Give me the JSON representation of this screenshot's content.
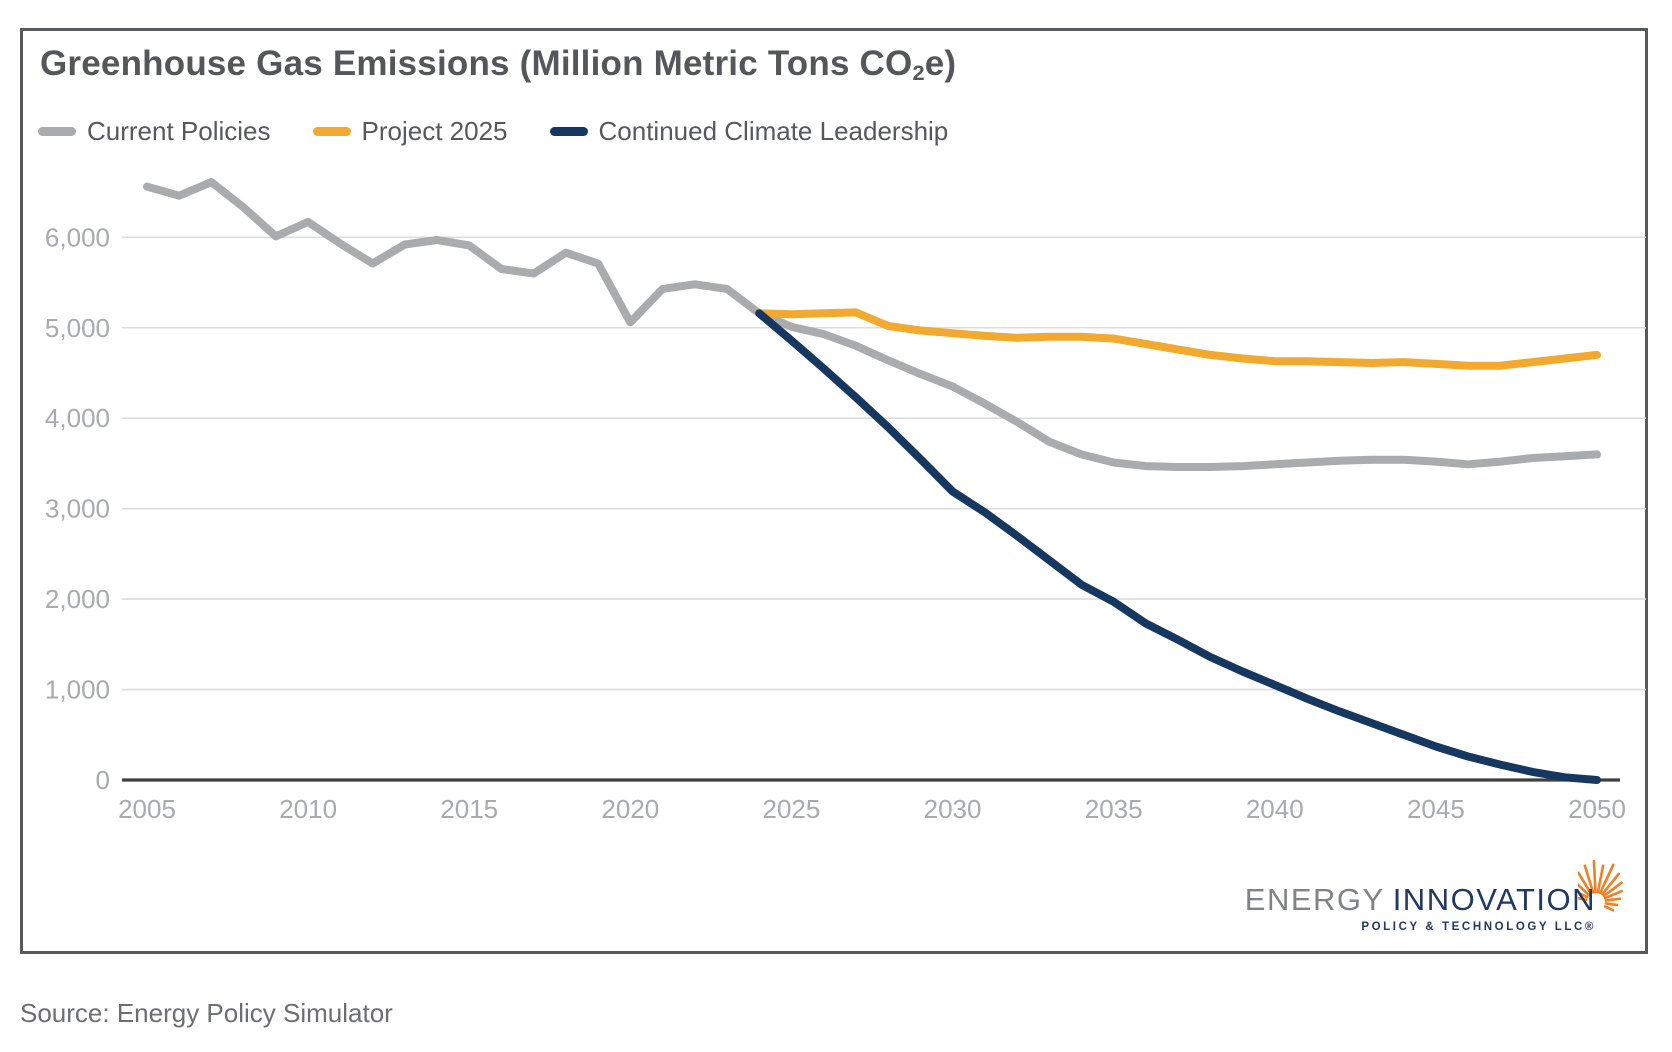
{
  "title": {
    "prefix": "Greenhouse Gas Emissions (Million Metric Tons CO",
    "subscript": "2",
    "suffix": "e)"
  },
  "source_note": "Source: Energy Policy Simulator",
  "logo": {
    "word1": "ENERGY",
    "word2": "INNOVATION",
    "tagline": "POLICY & TECHNOLOGY LLC®",
    "word1_color": "#808285",
    "word2_color": "#1f3864",
    "sunburst_color": "#f08025"
  },
  "colors": {
    "title_text": "#54565a",
    "axis_tick_text": "#a8aaad",
    "axis_line": "#3f4042",
    "gridline": "#dcddde",
    "card_border": "#58595b"
  },
  "chart_data": {
    "type": "line",
    "title": "Greenhouse Gas Emissions (Million Metric Tons CO2e)",
    "grid": "horizontal",
    "legend_position": "top-left",
    "x_axis": {
      "min": 2005,
      "max": 2050,
      "tick_step": 5,
      "tick_labels": [
        "2005",
        "2010",
        "2015",
        "2020",
        "2025",
        "2030",
        "2035",
        "2040",
        "2045",
        "2050"
      ]
    },
    "y_axis": {
      "min": 0,
      "max": 6600,
      "tick_step": 1000,
      "tick_labels": [
        "0",
        "1,000",
        "2,000",
        "3,000",
        "4,000",
        "5,000",
        "6,000"
      ]
    },
    "series": [
      {
        "name": "Current Policies",
        "color": "#a9abac",
        "start_year": 2005,
        "values": [
          6560,
          6460,
          6610,
          6330,
          6010,
          6170,
          5930,
          5710,
          5920,
          5970,
          5910,
          5650,
          5600,
          5830,
          5710,
          5060,
          5430,
          5480,
          5430,
          5160,
          5010,
          4930,
          4800,
          4640,
          4490,
          4350,
          4160,
          3960,
          3740,
          3600,
          3510,
          3470,
          3460,
          3460,
          3470,
          3490,
          3510,
          3530,
          3540,
          3540,
          3520,
          3490,
          3520,
          3560,
          3580,
          3600
        ]
      },
      {
        "name": "Project 2025",
        "color": "#f2a930",
        "start_year": 2024,
        "values": [
          5160,
          5150,
          5160,
          5170,
          5020,
          4970,
          4940,
          4910,
          4890,
          4900,
          4900,
          4880,
          4820,
          4760,
          4700,
          4660,
          4630,
          4630,
          4620,
          4610,
          4620,
          4600,
          4580,
          4580,
          4620,
          4660,
          4700
        ]
      },
      {
        "name": "Continued Climate Leadership",
        "color": "#16375f",
        "start_year": 2024,
        "values": [
          5160,
          4860,
          4550,
          4230,
          3900,
          3550,
          3190,
          2960,
          2700,
          2430,
          2160,
          1970,
          1730,
          1550,
          1360,
          1200,
          1050,
          900,
          760,
          630,
          500,
          370,
          260,
          170,
          90,
          30,
          0
        ]
      }
    ]
  }
}
